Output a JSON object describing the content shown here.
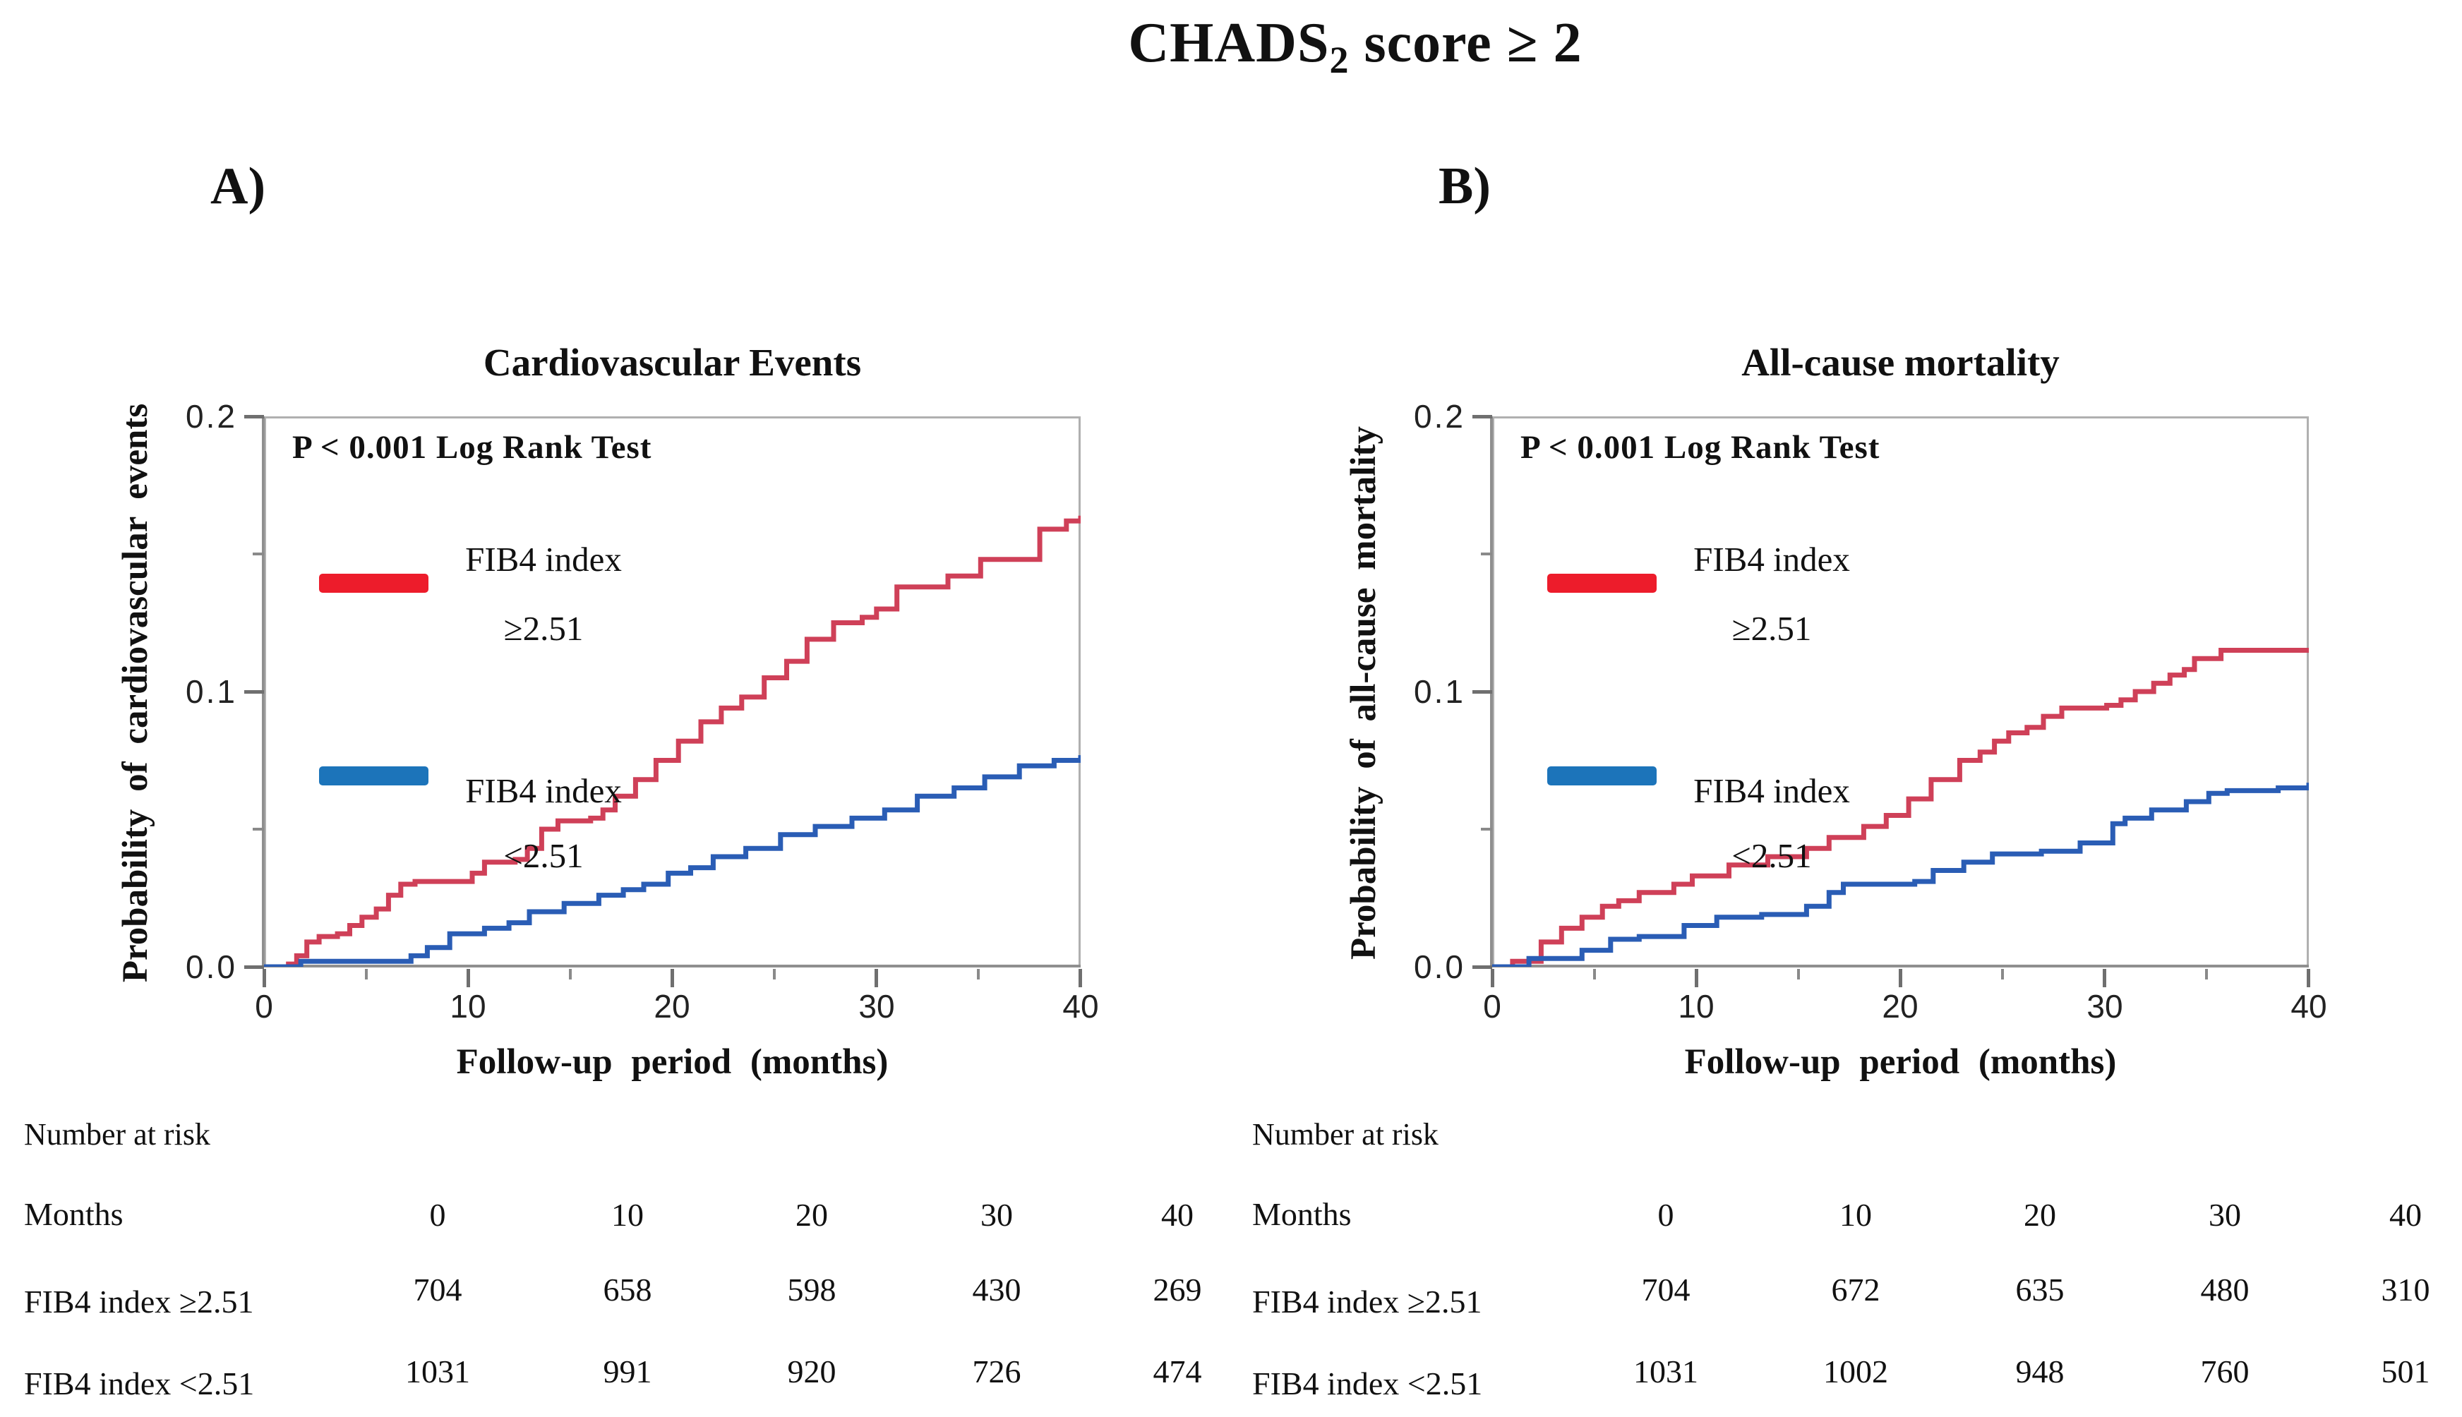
{
  "figure_title": {
    "prefix": "CHADS",
    "subscript": "2",
    "suffix": " score ≥ 2"
  },
  "colors": {
    "curve_red": "#cf4058",
    "curve_blue": "#2a5db5",
    "legend_red": "#ed1c2b",
    "legend_blue": "#1c74ba",
    "axis_gray": "#8f8f8f",
    "box_gray": "#b0b0b0"
  },
  "panels": {
    "a": {
      "label": "A)",
      "title": "Cardiovascular Events",
      "p_value_text": "P < 0.001 Log Rank Test",
      "y_axis": {
        "title": "Probability  of cardiovascular events",
        "ticks": [
          "0.2",
          "0.1",
          "0.0"
        ]
      },
      "x_axis": {
        "title": "Follow-up  period  (months)",
        "ticks": [
          "0",
          "10",
          "20",
          "30",
          "40"
        ]
      },
      "risk_table": {
        "heading": "Number at risk",
        "row_header": "Months",
        "columns": [
          "0",
          "10",
          "20",
          "30",
          "40"
        ],
        "rows": [
          {
            "label": "FIB4 index ≥2.51",
            "values": [
              "704",
              "658",
              "598",
              "430",
              "269"
            ]
          },
          {
            "label": "FIB4 index <2.51",
            "values": [
              "1031",
              "991",
              "920",
              "726",
              "474"
            ]
          }
        ]
      }
    },
    "b": {
      "label": "B)",
      "title": "All-cause mortality",
      "p_value_text": "P < 0.001 Log Rank Test",
      "y_axis": {
        "title": "Probability  of all-cause mortality",
        "ticks": [
          "0.2",
          "0.1",
          "0.0"
        ]
      },
      "x_axis": {
        "title": "Follow-up  period  (months)",
        "ticks": [
          "0",
          "10",
          "20",
          "30",
          "40"
        ]
      },
      "risk_table": {
        "heading": "Number at risk",
        "row_header": "Months",
        "columns": [
          "0",
          "10",
          "20",
          "30",
          "40"
        ],
        "rows": [
          {
            "label": "FIB4 index ≥2.51",
            "values": [
              "704",
              "672",
              "635",
              "480",
              "310"
            ]
          },
          {
            "label": "FIB4 index <2.51",
            "values": [
              "1031",
              "1002",
              "948",
              "760",
              "501"
            ]
          }
        ]
      }
    }
  },
  "chart_data": [
    {
      "type": "line",
      "subtype": "kaplan-meier-step",
      "title": "Cardiovascular Events",
      "xlabel": "Follow-up period (months)",
      "ylabel": "Probability of cardiovascular events",
      "annotation": "P < 0.001 Log Rank Test",
      "xlim": [
        0,
        40
      ],
      "ylim": [
        0,
        0.2
      ],
      "x_ticks": [
        0,
        10,
        20,
        30,
        40
      ],
      "y_ticks": [
        0.0,
        0.1,
        0.2
      ],
      "grid": false,
      "legend_position": "upper-left-inside",
      "series": [
        {
          "name": "FIB4 index ≥2.51",
          "legend_line1": "FIB4 index",
          "legend_line2": "≥2.51",
          "line_color": "#cf4058",
          "legend_color": "#ed1c2b",
          "points": [
            [
              0,
              0
            ],
            [
              1.2,
              0.001
            ],
            [
              1.6,
              0.004
            ],
            [
              2.1,
              0.009
            ],
            [
              2.7,
              0.011
            ],
            [
              3.6,
              0.012
            ],
            [
              4.2,
              0.015
            ],
            [
              4.8,
              0.018
            ],
            [
              5.5,
              0.021
            ],
            [
              6.1,
              0.026
            ],
            [
              6.7,
              0.03
            ],
            [
              7.4,
              0.031
            ],
            [
              10.2,
              0.034
            ],
            [
              10.8,
              0.038
            ],
            [
              12.3,
              0.039
            ],
            [
              12.9,
              0.043
            ],
            [
              13.6,
              0.05
            ],
            [
              14.4,
              0.053
            ],
            [
              16.0,
              0.054
            ],
            [
              16.6,
              0.057
            ],
            [
              17.2,
              0.062
            ],
            [
              18.2,
              0.068
            ],
            [
              19.2,
              0.075
            ],
            [
              20.3,
              0.082
            ],
            [
              21.4,
              0.089
            ],
            [
              22.4,
              0.094
            ],
            [
              23.4,
              0.098
            ],
            [
              24.5,
              0.105
            ],
            [
              25.6,
              0.111
            ],
            [
              26.6,
              0.119
            ],
            [
              27.9,
              0.125
            ],
            [
              29.3,
              0.127
            ],
            [
              30.0,
              0.13
            ],
            [
              31.0,
              0.138
            ],
            [
              33.5,
              0.142
            ],
            [
              35.1,
              0.148
            ],
            [
              37.6,
              0.148
            ],
            [
              38.0,
              0.159
            ],
            [
              39.3,
              0.162
            ],
            [
              40,
              0.163
            ]
          ]
        },
        {
          "name": "FIB4 index <2.51",
          "legend_line1": "FIB4 index",
          "legend_line2": "<2.51",
          "line_color": "#2a5db5",
          "legend_color": "#1c74ba",
          "points": [
            [
              0,
              0
            ],
            [
              1.8,
              0.002
            ],
            [
              7.2,
              0.004
            ],
            [
              8.0,
              0.007
            ],
            [
              9.1,
              0.012
            ],
            [
              10.8,
              0.014
            ],
            [
              12.0,
              0.016
            ],
            [
              13.0,
              0.02
            ],
            [
              14.7,
              0.023
            ],
            [
              16.4,
              0.026
            ],
            [
              17.6,
              0.028
            ],
            [
              18.6,
              0.03
            ],
            [
              19.8,
              0.034
            ],
            [
              20.9,
              0.036
            ],
            [
              22.0,
              0.04
            ],
            [
              23.6,
              0.043
            ],
            [
              25.3,
              0.048
            ],
            [
              27.0,
              0.051
            ],
            [
              28.8,
              0.054
            ],
            [
              30.4,
              0.057
            ],
            [
              32.0,
              0.062
            ],
            [
              33.8,
              0.065
            ],
            [
              35.3,
              0.069
            ],
            [
              37.0,
              0.073
            ],
            [
              38.7,
              0.075
            ],
            [
              40,
              0.076
            ]
          ]
        }
      ]
    },
    {
      "type": "line",
      "subtype": "kaplan-meier-step",
      "title": "All-cause mortality",
      "xlabel": "Follow-up period (months)",
      "ylabel": "Probability of all-cause mortality",
      "annotation": "P < 0.001 Log Rank Test",
      "xlim": [
        0,
        40
      ],
      "ylim": [
        0,
        0.2
      ],
      "x_ticks": [
        0,
        10,
        20,
        30,
        40
      ],
      "y_ticks": [
        0.0,
        0.1,
        0.2
      ],
      "grid": false,
      "legend_position": "upper-left-inside",
      "series": [
        {
          "name": "FIB4 index ≥2.51",
          "legend_line1": "FIB4 index",
          "legend_line2": "≥2.51",
          "line_color": "#cf4058",
          "legend_color": "#ed1c2b",
          "points": [
            [
              0,
              0
            ],
            [
              1.0,
              0.002
            ],
            [
              2.4,
              0.009
            ],
            [
              3.4,
              0.014
            ],
            [
              4.4,
              0.018
            ],
            [
              5.4,
              0.022
            ],
            [
              6.2,
              0.024
            ],
            [
              7.2,
              0.027
            ],
            [
              8.9,
              0.03
            ],
            [
              9.8,
              0.033
            ],
            [
              11.6,
              0.037
            ],
            [
              13.5,
              0.04
            ],
            [
              15.4,
              0.043
            ],
            [
              16.5,
              0.047
            ],
            [
              18.2,
              0.051
            ],
            [
              19.3,
              0.055
            ],
            [
              20.4,
              0.061
            ],
            [
              21.5,
              0.068
            ],
            [
              22.9,
              0.075
            ],
            [
              23.9,
              0.078
            ],
            [
              24.6,
              0.082
            ],
            [
              25.3,
              0.085
            ],
            [
              26.2,
              0.087
            ],
            [
              27.0,
              0.091
            ],
            [
              27.9,
              0.094
            ],
            [
              30.1,
              0.095
            ],
            [
              30.8,
              0.097
            ],
            [
              31.5,
              0.1
            ],
            [
              32.4,
              0.103
            ],
            [
              33.2,
              0.106
            ],
            [
              33.9,
              0.108
            ],
            [
              34.4,
              0.112
            ],
            [
              35.7,
              0.115
            ],
            [
              40,
              0.115
            ]
          ]
        },
        {
          "name": "FIB4 index <2.51",
          "legend_line1": "FIB4 index",
          "legend_line2": "<2.51",
          "line_color": "#2a5db5",
          "legend_color": "#1c74ba",
          "points": [
            [
              0,
              0
            ],
            [
              1.8,
              0.003
            ],
            [
              4.4,
              0.006
            ],
            [
              5.8,
              0.01
            ],
            [
              7.2,
              0.011
            ],
            [
              9.4,
              0.015
            ],
            [
              11.0,
              0.018
            ],
            [
              13.2,
              0.019
            ],
            [
              15.4,
              0.022
            ],
            [
              16.5,
              0.027
            ],
            [
              17.2,
              0.03
            ],
            [
              20.7,
              0.031
            ],
            [
              21.6,
              0.035
            ],
            [
              23.1,
              0.038
            ],
            [
              24.5,
              0.041
            ],
            [
              26.9,
              0.042
            ],
            [
              28.8,
              0.045
            ],
            [
              30.4,
              0.052
            ],
            [
              31.0,
              0.054
            ],
            [
              32.3,
              0.057
            ],
            [
              34.0,
              0.06
            ],
            [
              35.1,
              0.063
            ],
            [
              36.0,
              0.064
            ],
            [
              38.5,
              0.065
            ],
            [
              40,
              0.066
            ]
          ]
        }
      ]
    }
  ]
}
